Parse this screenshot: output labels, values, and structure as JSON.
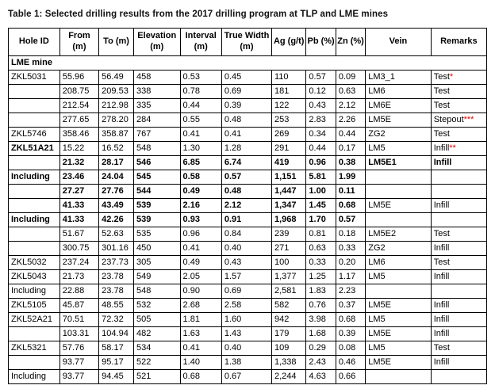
{
  "title": "Table 1: Selected drilling results from the 2017 drilling program at TLP and LME mines",
  "accent_red": "#e80000",
  "table": {
    "columns": [
      "Hole ID",
      "From (m)",
      "To (m)",
      "Elevation (m)",
      "Interval (m)",
      "True Width (m)",
      "Ag (g/t)",
      "Pb (%)",
      "Zn (%)",
      "Vein",
      "Remarks"
    ],
    "section_label": "LME mine",
    "rows": [
      {
        "hole": "ZKL5031",
        "from": "55.96",
        "to": "56.49",
        "elev": "458",
        "interval": "0.53",
        "tw": "0.45",
        "ag": "110",
        "pb": "0.57",
        "zn": "0.09",
        "vein": "LM3_1",
        "remark": "Test",
        "stars": "*",
        "hb": false,
        "nb": false,
        "vb": false,
        "rb": false
      },
      {
        "hole": "",
        "from": "208.75",
        "to": "209.53",
        "elev": "338",
        "interval": "0.78",
        "tw": "0.69",
        "ag": "181",
        "pb": "0.12",
        "zn": "0.63",
        "vein": "LM6",
        "remark": "Test",
        "stars": "",
        "hb": false,
        "nb": false,
        "vb": false,
        "rb": false
      },
      {
        "hole": "",
        "from": "212.54",
        "to": "212.98",
        "elev": "335",
        "interval": "0.44",
        "tw": "0.39",
        "ag": "122",
        "pb": "0.43",
        "zn": "2.12",
        "vein": "LM6E",
        "remark": "Test",
        "stars": "",
        "hb": false,
        "nb": false,
        "vb": false,
        "rb": false
      },
      {
        "hole": "",
        "from": "277.65",
        "to": "278.20",
        "elev": "284",
        "interval": "0.55",
        "tw": "0.48",
        "ag": "253",
        "pb": "2.83",
        "zn": "2.26",
        "vein": "LM5E",
        "remark": "Stepout",
        "stars": "***",
        "hb": false,
        "nb": false,
        "vb": false,
        "rb": false
      },
      {
        "hole": "ZKL5746",
        "from": "358.46",
        "to": "358.87",
        "elev": "767",
        "interval": "0.41",
        "tw": "0.41",
        "ag": "269",
        "pb": "0.34",
        "zn": "0.44",
        "vein": "ZG2",
        "remark": "Test",
        "stars": "",
        "hb": false,
        "nb": false,
        "vb": false,
        "rb": false
      },
      {
        "hole": "ZKL51A21",
        "from": "15.22",
        "to": "16.52",
        "elev": "548",
        "interval": "1.30",
        "tw": "1.28",
        "ag": "291",
        "pb": "0.44",
        "zn": "0.17",
        "vein": "LM5",
        "remark": "Infill",
        "stars": "**",
        "hb": true,
        "nb": false,
        "vb": false,
        "rb": false
      },
      {
        "hole": "",
        "from": "21.32",
        "to": "28.17",
        "elev": "546",
        "interval": "6.85",
        "tw": "6.74",
        "ag": "419",
        "pb": "0.96",
        "zn": "0.38",
        "vein": "LM5E1",
        "remark": "Infill",
        "stars": "",
        "hb": false,
        "nb": true,
        "vb": true,
        "rb": true
      },
      {
        "hole": "Including",
        "from": "23.46",
        "to": "24.04",
        "elev": "545",
        "interval": "0.58",
        "tw": "0.57",
        "ag": "1,151",
        "pb": "5.81",
        "zn": "1.99",
        "vein": "",
        "remark": "",
        "stars": "",
        "hb": true,
        "nb": true,
        "vb": false,
        "rb": false
      },
      {
        "hole": "",
        "from": "27.27",
        "to": "27.76",
        "elev": "544",
        "interval": "0.49",
        "tw": "0.48",
        "ag": "1,447",
        "pb": "1.00",
        "zn": "0.11",
        "vein": "",
        "remark": "",
        "stars": "",
        "hb": false,
        "nb": true,
        "vb": false,
        "rb": false
      },
      {
        "hole": "",
        "from": "41.33",
        "to": "43.49",
        "elev": "539",
        "interval": "2.16",
        "tw": "2.12",
        "ag": "1,347",
        "pb": "1.45",
        "zn": "0.68",
        "vein": "LM5E",
        "remark": "Infill",
        "stars": "",
        "hb": false,
        "nb": true,
        "vb": false,
        "rb": false
      },
      {
        "hole": "Including",
        "from": "41.33",
        "to": "42.26",
        "elev": "539",
        "interval": "0.93",
        "tw": "0.91",
        "ag": "1,968",
        "pb": "1.70",
        "zn": "0.57",
        "vein": "",
        "remark": "",
        "stars": "",
        "hb": true,
        "nb": true,
        "vb": false,
        "rb": false
      },
      {
        "hole": "",
        "from": "51.67",
        "to": "52.63",
        "elev": "535",
        "interval": "0.96",
        "tw": "0.84",
        "ag": "239",
        "pb": "0.81",
        "zn": "0.18",
        "vein": "LM5E2",
        "remark": "Test",
        "stars": "",
        "hb": false,
        "nb": false,
        "vb": false,
        "rb": false
      },
      {
        "hole": "",
        "from": "300.75",
        "to": "301.16",
        "elev": "450",
        "interval": "0.41",
        "tw": "0.40",
        "ag": "271",
        "pb": "0.63",
        "zn": "0.33",
        "vein": "ZG2",
        "remark": "Infill",
        "stars": "",
        "hb": false,
        "nb": false,
        "vb": false,
        "rb": false
      },
      {
        "hole": "ZKL5032",
        "from": "237.24",
        "to": "237.73",
        "elev": "305",
        "interval": "0.49",
        "tw": "0.43",
        "ag": "100",
        "pb": "0.33",
        "zn": "0.20",
        "vein": "LM6",
        "remark": "Test",
        "stars": "",
        "hb": false,
        "nb": false,
        "vb": false,
        "rb": false
      },
      {
        "hole": "ZKL5043",
        "from": "21.73",
        "to": "23.78",
        "elev": "549",
        "interval": "2.05",
        "tw": "1.57",
        "ag": "1,377",
        "pb": "1.25",
        "zn": "1.17",
        "vein": "LM5",
        "remark": "Infill",
        "stars": "",
        "hb": false,
        "nb": false,
        "vb": false,
        "rb": false
      },
      {
        "hole": "Including",
        "from": "22.88",
        "to": "23.78",
        "elev": "548",
        "interval": "0.90",
        "tw": "0.69",
        "ag": "2,581",
        "pb": "1.83",
        "zn": "2.23",
        "vein": "",
        "remark": "",
        "stars": "",
        "hb": false,
        "nb": false,
        "vb": false,
        "rb": false
      },
      {
        "hole": "ZKL5105",
        "from": "45.87",
        "to": "48.55",
        "elev": "532",
        "interval": "2.68",
        "tw": "2.58",
        "ag": "582",
        "pb": "0.76",
        "zn": "0.37",
        "vein": "LM5E",
        "remark": "Infill",
        "stars": "",
        "hb": false,
        "nb": false,
        "vb": false,
        "rb": false
      },
      {
        "hole": "ZKL52A21",
        "from": "70.51",
        "to": "72.32",
        "elev": "505",
        "interval": "1.81",
        "tw": "1.60",
        "ag": "942",
        "pb": "3.98",
        "zn": "0.68",
        "vein": "LM5",
        "remark": "Infill",
        "stars": "",
        "hb": false,
        "nb": false,
        "vb": false,
        "rb": false
      },
      {
        "hole": "",
        "from": "103.31",
        "to": "104.94",
        "elev": "482",
        "interval": "1.63",
        "tw": "1.43",
        "ag": "179",
        "pb": "1.68",
        "zn": "0.39",
        "vein": "LM5E",
        "remark": "Infill",
        "stars": "",
        "hb": false,
        "nb": false,
        "vb": false,
        "rb": false
      },
      {
        "hole": "ZKL5321",
        "from": "57.76",
        "to": "58.17",
        "elev": "534",
        "interval": "0.41",
        "tw": "0.40",
        "ag": "109",
        "pb": "0.29",
        "zn": "0.08",
        "vein": "LM5",
        "remark": "Test",
        "stars": "",
        "hb": false,
        "nb": false,
        "vb": false,
        "rb": false
      },
      {
        "hole": "",
        "from": "93.77",
        "to": "95.17",
        "elev": "522",
        "interval": "1.40",
        "tw": "1.38",
        "ag": "1,338",
        "pb": "2.43",
        "zn": "0.46",
        "vein": "LM5E",
        "remark": "Infill",
        "stars": "",
        "hb": false,
        "nb": false,
        "vb": false,
        "rb": false
      },
      {
        "hole": "Including",
        "from": "93.77",
        "to": "94.45",
        "elev": "521",
        "interval": "0.68",
        "tw": "0.67",
        "ag": "2,244",
        "pb": "4.63",
        "zn": "0.66",
        "vein": "",
        "remark": "",
        "stars": "",
        "hb": false,
        "nb": false,
        "vb": false,
        "rb": false
      }
    ]
  }
}
